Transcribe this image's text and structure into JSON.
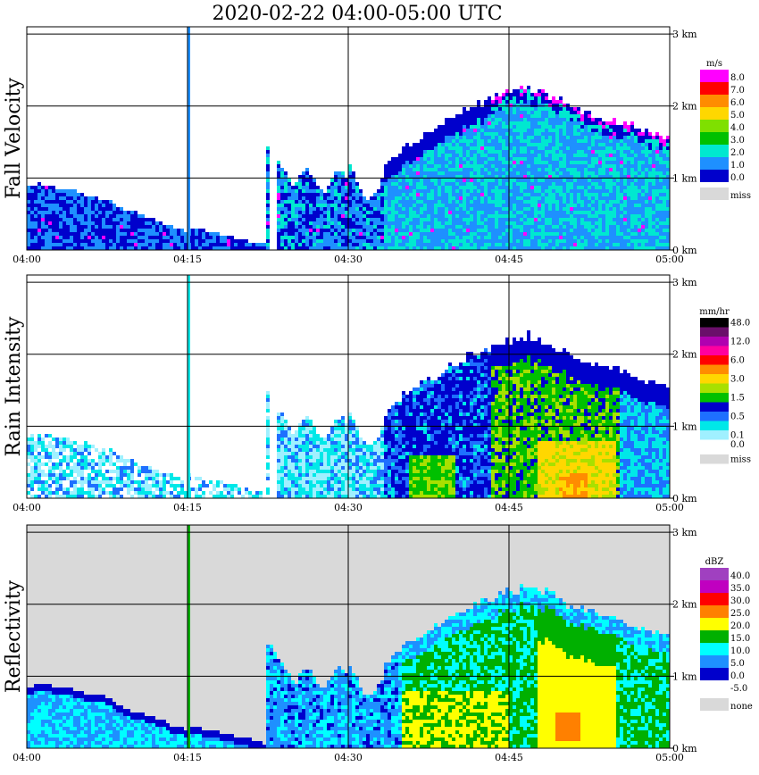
{
  "chart_data": {
    "type": "heatmap",
    "title": "2020-02-22   04:00-05:00 UTC",
    "x_ticks": [
      "04:00",
      "04:15",
      "04:30",
      "04:45",
      "05:00"
    ],
    "x_range": [
      "04:00",
      "05:00"
    ],
    "y_ticks": [
      "0 km",
      "1 km",
      "2 km",
      "3 km"
    ],
    "y_range_km": [
      0,
      3.0
    ],
    "grid": true,
    "legend_placement": "right",
    "panels": [
      {
        "name": "fall-velocity",
        "ylabel": "Fall Velocity",
        "unit": "m/s",
        "legend": [
          {
            "label": "8.0",
            "color": "#ff00ff"
          },
          {
            "label": "7.0",
            "color": "#ff0000"
          },
          {
            "label": "6.0",
            "color": "#ff8c00"
          },
          {
            "label": "5.0",
            "color": "#ffd700"
          },
          {
            "label": "4.0",
            "color": "#7fe000"
          },
          {
            "label": "3.0",
            "color": "#00c000"
          },
          {
            "label": "2.0",
            "color": "#00e8d0"
          },
          {
            "label": "1.0",
            "color": "#1e90ff"
          },
          {
            "label": "0.0",
            "color": "#0000cc"
          },
          {
            "label": "miss",
            "color": "#d9d9d9",
            "gap": true
          }
        ],
        "background": "#ffffff"
      },
      {
        "name": "rain-intensity",
        "ylabel": "Rain Intensity",
        "unit": "mm/hr",
        "legend": [
          {
            "label": "48.0",
            "color": "#000000"
          },
          {
            "label": "",
            "color": "#6a0f6a"
          },
          {
            "label": "12.0",
            "color": "#b000b0"
          },
          {
            "label": "",
            "color": "#ff00a0"
          },
          {
            "label": "6.0",
            "color": "#ff0000"
          },
          {
            "label": "",
            "color": "#ff8c00"
          },
          {
            "label": "3.0",
            "color": "#ffd700"
          },
          {
            "label": "",
            "color": "#a8e000"
          },
          {
            "label": "1.5",
            "color": "#00c000"
          },
          {
            "label": "",
            "color": "#0000cc"
          },
          {
            "label": "0.5",
            "color": "#1e6fff"
          },
          {
            "label": "",
            "color": "#00e8e8"
          },
          {
            "label": "0.1",
            "color": "#a0f0ff"
          },
          {
            "label": "0.0",
            "color": "#ffffff"
          },
          {
            "label": "miss",
            "color": "#d9d9d9",
            "gap": true
          }
        ],
        "background": "#ffffff"
      },
      {
        "name": "reflectivity",
        "ylabel": "Reflectivity",
        "unit": "dBZ",
        "legend": [
          {
            "label": "40.0",
            "color": "#a040c0"
          },
          {
            "label": "35.0",
            "color": "#c000c0"
          },
          {
            "label": "30.0",
            "color": "#ff0000"
          },
          {
            "label": "25.0",
            "color": "#ff8000"
          },
          {
            "label": "20.0",
            "color": "#ffff00"
          },
          {
            "label": "15.0",
            "color": "#00b000"
          },
          {
            "label": "10.0",
            "color": "#00ffff"
          },
          {
            "label": "5.0",
            "color": "#1e90ff"
          },
          {
            "label": "0.0",
            "color": "#0000cc"
          },
          {
            "label": "-5.0",
            "color": "#ffffff"
          },
          {
            "label": "none",
            "color": "#d9d9d9",
            "gap": true
          }
        ],
        "background": "#d9d9d9"
      }
    ]
  }
}
